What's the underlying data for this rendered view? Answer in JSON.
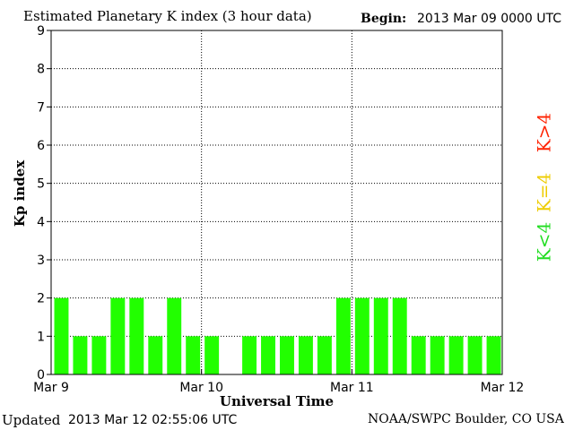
{
  "header": {
    "title": "Estimated Planetary K index (3 hour data)",
    "begin_label": "Begin:",
    "begin_value": "2013 Mar 09 0000 UTC"
  },
  "footer": {
    "updated_label": "Updated",
    "updated_value": "2013 Mar 12 02:55:06 UTC",
    "source": "NOAA/SWPC Boulder, CO USA"
  },
  "legend": [
    {
      "label": "K<4",
      "color": "#22dd22"
    },
    {
      "label": "K=4",
      "color": "#eecc00"
    },
    {
      "label": "K>4",
      "color": "#ff2200"
    }
  ],
  "chart_data": {
    "type": "bar",
    "title": "Estimated Planetary K index (3 hour data)",
    "xlabel": "Universal Time",
    "ylabel": "Kp index",
    "ylim": [
      0,
      9
    ],
    "yticks": [
      0,
      1,
      2,
      3,
      4,
      5,
      6,
      7,
      8,
      9
    ],
    "xticks": [
      "Mar 9",
      "Mar 10",
      "Mar 11",
      "Mar 12"
    ],
    "bar_color": "#22ff00",
    "grid": true,
    "series": [
      {
        "values": [
          2,
          1,
          1,
          2,
          2,
          1,
          2,
          1,
          1,
          0,
          1,
          1,
          1,
          1,
          1,
          2,
          2,
          2,
          2,
          1,
          1,
          1,
          1,
          1
        ]
      }
    ]
  }
}
